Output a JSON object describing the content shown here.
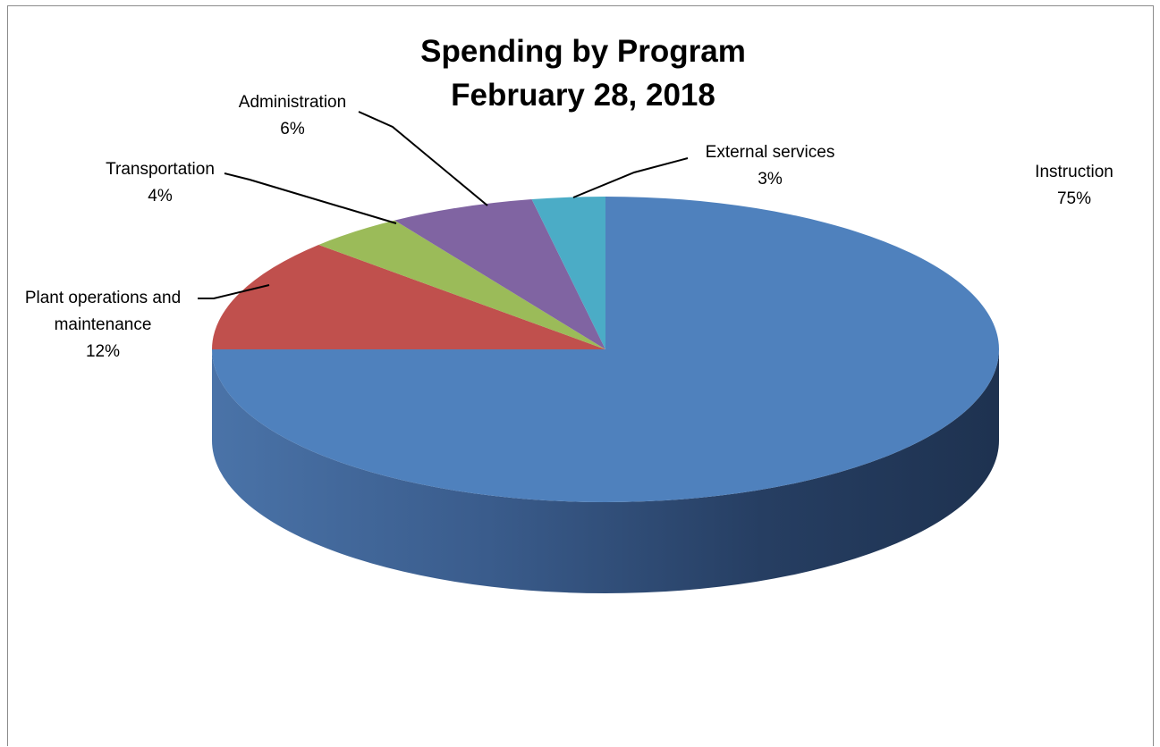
{
  "chart_data": {
    "type": "pie",
    "style": "3d",
    "title": "Spending by Program",
    "subtitle": "February 28, 2018",
    "slices": [
      {
        "name": "Instruction",
        "percent": 75,
        "label": "75%",
        "color": "#4F81BD"
      },
      {
        "name": "Plant operations and maintenance",
        "percent": 12,
        "label": "12%",
        "color": "#C0504D"
      },
      {
        "name": "Transportation",
        "percent": 4,
        "label": "4%",
        "color": "#9BBB59"
      },
      {
        "name": "Administration",
        "percent": 6,
        "label": "6%",
        "color": "#8064A2"
      },
      {
        "name": "External services",
        "percent": 3,
        "label": "3%",
        "color": "#4BACC6"
      }
    ],
    "legend": "none"
  },
  "labels": {
    "instruction": {
      "name": "Instruction",
      "value": "75%"
    },
    "plant": {
      "line1": "Plant operations and",
      "line2": "maintenance",
      "value": "12%"
    },
    "transportation": {
      "name": "Transportation",
      "value": "4%"
    },
    "administration": {
      "name": "Administration",
      "value": "6%"
    },
    "external": {
      "name": "External services",
      "value": "3%"
    }
  }
}
